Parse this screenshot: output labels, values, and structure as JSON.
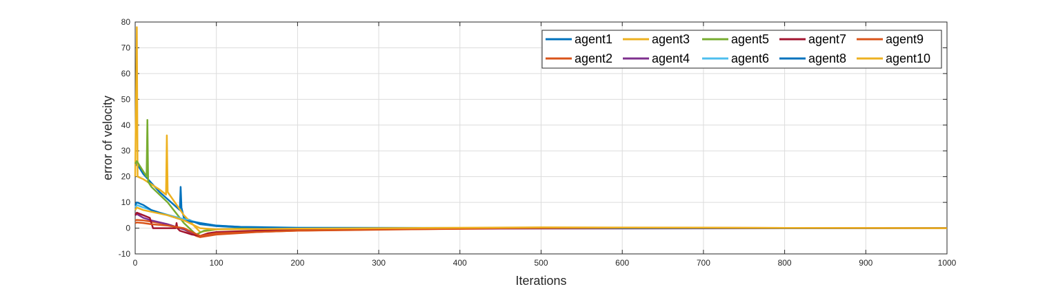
{
  "chart_data": {
    "type": "line",
    "title": "",
    "xlabel": "Iterations",
    "ylabel": "error of velocity",
    "xlim": [
      0,
      1000
    ],
    "ylim": [
      -10,
      80
    ],
    "xticks": [
      0,
      100,
      200,
      300,
      400,
      500,
      600,
      700,
      800,
      900,
      1000
    ],
    "yticks": [
      -10,
      0,
      10,
      20,
      30,
      40,
      50,
      60,
      70,
      80
    ],
    "grid": true,
    "legend_position": "top-right",
    "legend_columns": 5,
    "series": [
      {
        "name": "agent1",
        "color": "#0072BD",
        "x": [
          0,
          2,
          10,
          30,
          55,
          56,
          57,
          60,
          80,
          100,
          130,
          200,
          400,
          1000
        ],
        "y": [
          24,
          25,
          21,
          14,
          7,
          16,
          8,
          4,
          1.5,
          0.8,
          0.3,
          0.1,
          0,
          0
        ]
      },
      {
        "name": "agent2",
        "color": "#D95319",
        "x": [
          0,
          2,
          10,
          20,
          40,
          60,
          75,
          80,
          100,
          150,
          200,
          300,
          500,
          1000
        ],
        "y": [
          3,
          3.2,
          3,
          2.5,
          1.5,
          -0.5,
          -3,
          -3.5,
          -2.5,
          -1.5,
          -1,
          -0.5,
          -0.1,
          0
        ]
      },
      {
        "name": "agent3",
        "color": "#EDB120",
        "x": [
          0,
          2,
          3,
          10,
          30,
          38,
          39,
          40,
          60,
          80,
          90,
          100,
          200,
          400,
          1000
        ],
        "y": [
          20,
          78,
          20,
          19,
          15,
          13,
          36,
          14,
          5,
          -1.5,
          -1,
          -0.5,
          0,
          0,
          0
        ]
      },
      {
        "name": "agent4",
        "color": "#7E2F8E",
        "x": [
          0,
          2,
          10,
          20,
          40,
          60,
          80,
          100,
          150,
          200,
          300,
          1000
        ],
        "y": [
          5,
          5.5,
          4,
          3,
          1.5,
          -0.5,
          -3,
          -2,
          -1,
          -0.5,
          -0.2,
          0
        ]
      },
      {
        "name": "agent5",
        "color": "#77AC30",
        "x": [
          0,
          2,
          10,
          14,
          15,
          16,
          20,
          40,
          60,
          75,
          85,
          100,
          150,
          300,
          1000
        ],
        "y": [
          25,
          26,
          22,
          20,
          42,
          18,
          16,
          10,
          2,
          -2.5,
          -1,
          -0.5,
          0,
          0,
          0
        ]
      },
      {
        "name": "agent6",
        "color": "#4DBEEE",
        "x": [
          0,
          2,
          10,
          30,
          60,
          80,
          100,
          130,
          200,
          400,
          1000
        ],
        "y": [
          8,
          9,
          8,
          6,
          3.5,
          2,
          1,
          0.5,
          0.2,
          0.1,
          0
        ]
      },
      {
        "name": "agent7",
        "color": "#A2142F",
        "x": [
          0,
          2,
          10,
          18,
          20,
          22,
          40,
          50,
          51,
          52,
          55,
          70,
          80,
          90,
          100,
          200,
          400,
          1000
        ],
        "y": [
          5,
          6,
          5,
          4,
          2,
          0,
          0,
          0,
          2,
          0,
          -1,
          -2.5,
          -3,
          -2,
          -1.5,
          -0.5,
          0,
          0
        ]
      },
      {
        "name": "agent8",
        "color": "#0072BD",
        "x": [
          0,
          2,
          10,
          20,
          40,
          60,
          80,
          100,
          130,
          200,
          1000
        ],
        "y": [
          9,
          10,
          9,
          7,
          5,
          3,
          2,
          1,
          0.5,
          0.1,
          0
        ]
      },
      {
        "name": "agent9",
        "color": "#D95319",
        "x": [
          0,
          2,
          10,
          20,
          40,
          60,
          80,
          100,
          200,
          450,
          600,
          1000
        ],
        "y": [
          2,
          2.2,
          2,
          1.5,
          1,
          0,
          -3,
          -2,
          -1,
          0,
          0.2,
          0
        ]
      },
      {
        "name": "agent10",
        "color": "#EDB120",
        "x": [
          0,
          2,
          10,
          40,
          60,
          80,
          100,
          200,
          300,
          500,
          700,
          800,
          1000
        ],
        "y": [
          7,
          8,
          7,
          5,
          3,
          0,
          -0.5,
          -0.2,
          0,
          0.3,
          0.2,
          0.1,
          0
        ]
      }
    ]
  }
}
